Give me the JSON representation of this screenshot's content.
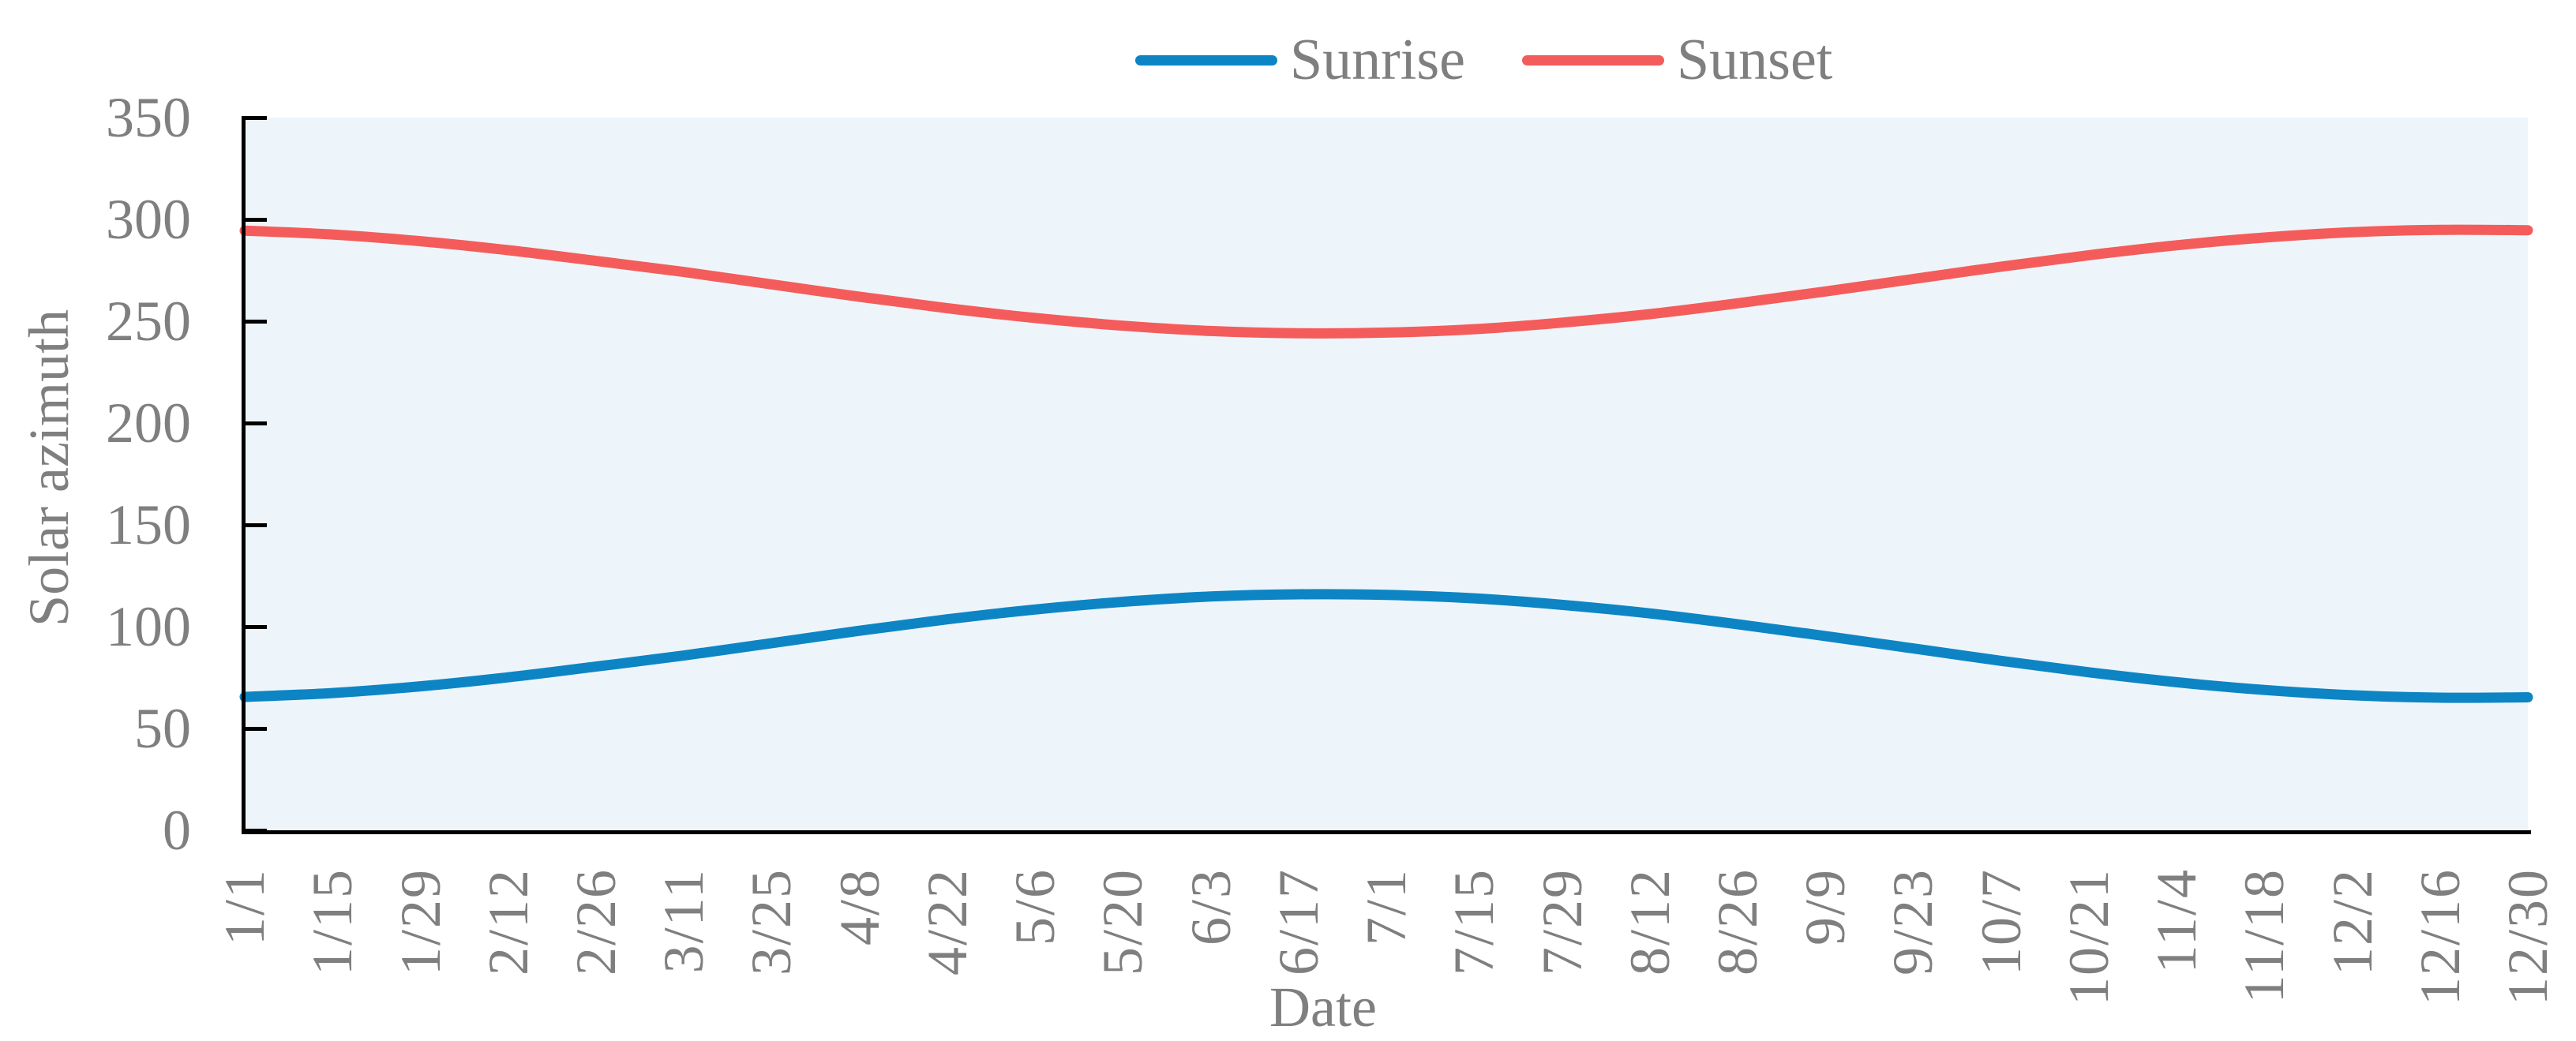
{
  "chart_data": {
    "type": "line",
    "title": "",
    "xlabel": "Date",
    "ylabel": "Solar azimuth",
    "ylim": [
      0,
      350
    ],
    "yticks": [
      0,
      50,
      100,
      150,
      200,
      250,
      300,
      350
    ],
    "grid": false,
    "legend_position": "top-center",
    "plot_bg_color": "#eef5fa",
    "axis_color": "#000000",
    "text_color": "#7f7f7f",
    "line_width": 13,
    "categories": [
      "1/1",
      "1/15",
      "1/29",
      "2/12",
      "2/26",
      "3/11",
      "3/25",
      "4/8",
      "4/22",
      "5/6",
      "5/20",
      "6/3",
      "6/17",
      "7/1",
      "7/15",
      "7/29",
      "8/12",
      "8/26",
      "9/9",
      "9/23",
      "10/7",
      "10/21",
      "11/4",
      "11/18",
      "12/2",
      "12/16",
      "12/30"
    ],
    "series": [
      {
        "name": "Sunrise",
        "color": "#0d85c4",
        "values": [
          65.5,
          67.4,
          70.7,
          75.1,
          80.4,
          85.8,
          91.9,
          98.0,
          103.6,
          108.4,
          112.2,
          114.8,
          115.9,
          115.6,
          113.9,
          110.7,
          106.5,
          101.2,
          95.4,
          89.3,
          83.2,
          77.6,
          72.7,
          68.9,
          66.3,
          65.1,
          65.3
        ]
      },
      {
        "name": "Sunset",
        "color": "#f45c5c",
        "values": [
          294.5,
          292.6,
          289.3,
          284.9,
          279.6,
          274.2,
          268.1,
          262.0,
          256.4,
          251.6,
          247.8,
          245.2,
          244.1,
          244.4,
          246.1,
          249.3,
          253.5,
          258.8,
          264.6,
          270.7,
          276.8,
          282.4,
          287.3,
          291.1,
          293.7,
          294.9,
          294.7
        ]
      }
    ]
  }
}
